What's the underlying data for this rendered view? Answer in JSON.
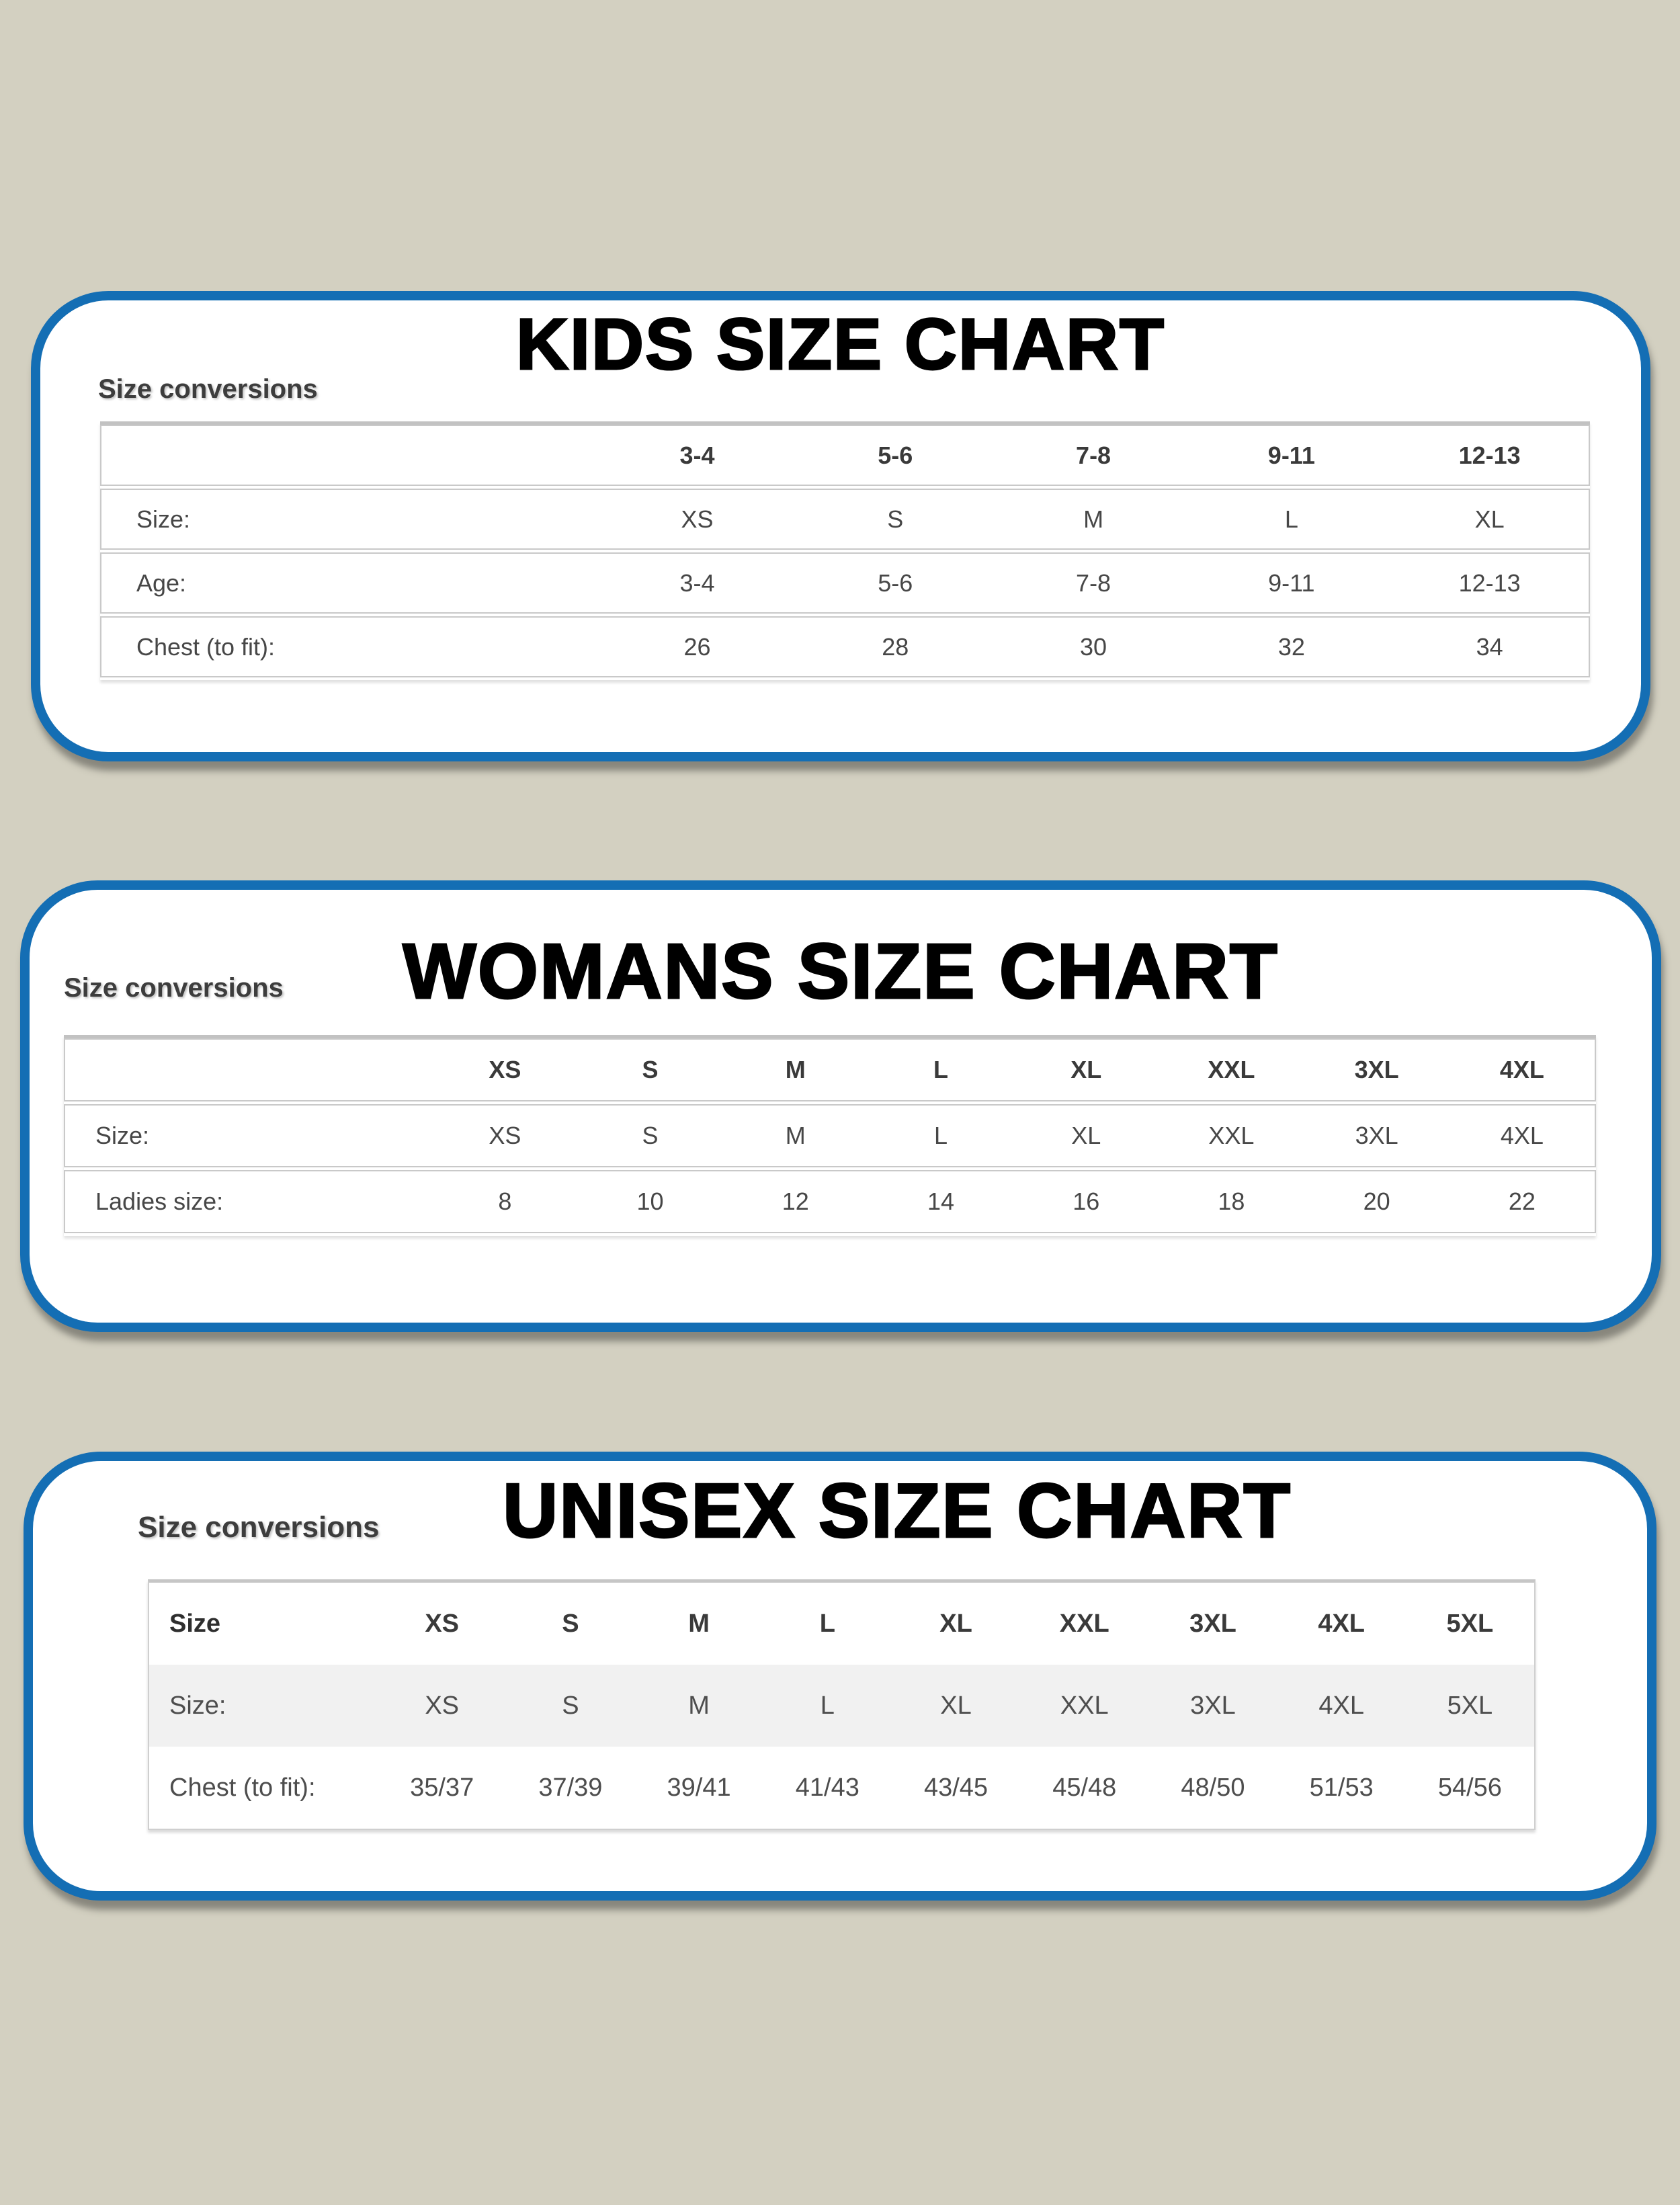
{
  "colors": {
    "page_background": "#d3d0c1",
    "card_border_blue": "#146eb4",
    "card_background": "#ffffff",
    "table_border_gray": "#c9c9c9",
    "striped_row_gray": "#f1f1f1",
    "text_dark": "#3a3a3a"
  },
  "charts": [
    {
      "id": "kids",
      "title": "KIDS SIZE CHART",
      "subtitle": "Size conversions",
      "table": {
        "columns": [
          "",
          "3-4",
          "5-6",
          "7-8",
          "9-11",
          "12-13"
        ],
        "rows": [
          {
            "label": "Size:",
            "values": [
              "XS",
              "S",
              "M",
              "L",
              "XL"
            ]
          },
          {
            "label": "Age:",
            "values": [
              "3-4",
              "5-6",
              "7-8",
              "9-11",
              "12-13"
            ]
          },
          {
            "label": "Chest (to fit):",
            "values": [
              "26",
              "28",
              "30",
              "32",
              "34"
            ]
          }
        ]
      }
    },
    {
      "id": "womans",
      "title": "WOMANS SIZE CHART",
      "subtitle": "Size conversions",
      "table": {
        "columns": [
          "",
          "XS",
          "S",
          "M",
          "L",
          "XL",
          "XXL",
          "3XL",
          "4XL"
        ],
        "rows": [
          {
            "label": "Size:",
            "values": [
              "XS",
              "S",
              "M",
              "L",
              "XL",
              "XXL",
              "3XL",
              "4XL"
            ]
          },
          {
            "label": "Ladies size:",
            "values": [
              "8",
              "10",
              "12",
              "14",
              "16",
              "18",
              "20",
              "22"
            ]
          }
        ]
      }
    },
    {
      "id": "unisex",
      "title": "UNISEX SIZE CHART",
      "subtitle": "Size conversions",
      "table": {
        "columns": [
          "Size",
          "XS",
          "S",
          "M",
          "L",
          "XL",
          "XXL",
          "3XL",
          "4XL",
          "5XL"
        ],
        "rows": [
          {
            "label": "Size:",
            "values": [
              "XS",
              "S",
              "M",
              "L",
              "XL",
              "XXL",
              "3XL",
              "4XL",
              "5XL"
            ]
          },
          {
            "label": "Chest (to fit):",
            "values": [
              "35/37",
              "37/39",
              "39/41",
              "41/43",
              "43/45",
              "45/48",
              "48/50",
              "51/53",
              "54/56"
            ]
          }
        ]
      }
    }
  ]
}
